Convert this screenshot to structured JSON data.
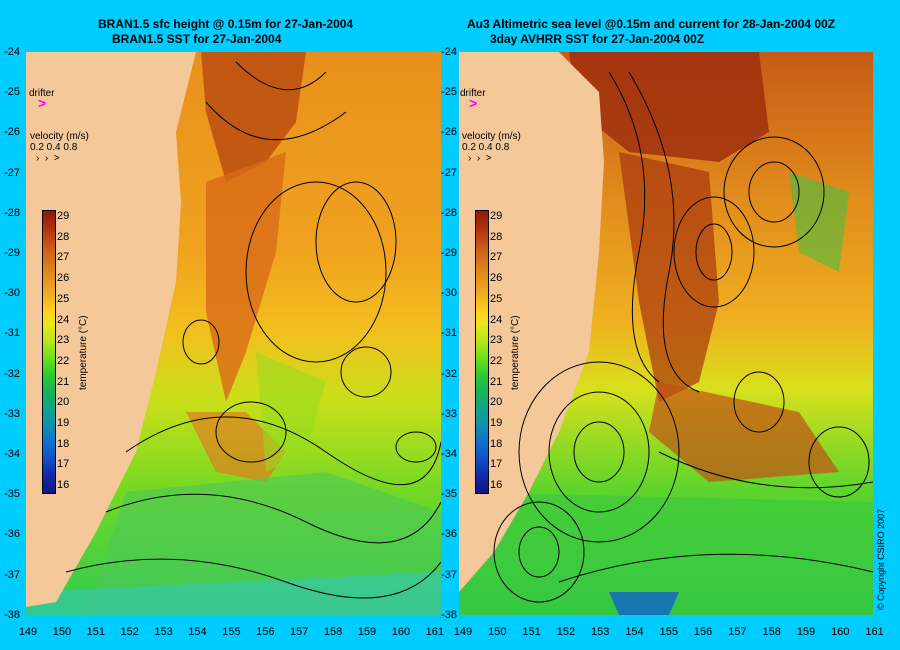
{
  "left_panel": {
    "title_line1": "BRAN1.5 sfc height @ 0.15m for 27-Jan-2004",
    "title_line2": "BRAN1.5 SST for 27-Jan-2004"
  },
  "right_panel": {
    "title_line1": "Au3 Altimetric sea level  @0.15m and current for 28-Jan-2004 00Z",
    "title_line2": "3day AVHRR SST for 27-Jan-2004 00Z"
  },
  "drifter_label": "drifter",
  "velocity_label": "velocity (m/s)",
  "velocity_values": "0.2 0.4 0.8",
  "temperature_label": "temperature (°C)",
  "colorbar_ticks": [
    "29",
    "28",
    "27",
    "26",
    "25",
    "24",
    "23",
    "22",
    "21",
    "20",
    "19",
    "18",
    "17",
    "16"
  ],
  "y_ticks": [
    "-24",
    "-25",
    "-26",
    "-27",
    "-28",
    "-29",
    "-30",
    "-31",
    "-32",
    "-33",
    "-34",
    "-35",
    "-36",
    "-37",
    "-38"
  ],
  "x_ticks": [
    "149",
    "150",
    "151",
    "152",
    "153",
    "154",
    "155",
    "156",
    "157",
    "158",
    "159",
    "160",
    "161"
  ],
  "x_ticks_right": [
    "149",
    "150",
    "151",
    "152",
    "153",
    "154",
    "155",
    "156",
    "157",
    "158",
    "159",
    "160",
    "161"
  ],
  "copyright": "© Copyright CSIRO 2007",
  "colors": {
    "background": "#00ccff",
    "land": "#f5c89a",
    "drifter": "#ff00ff"
  }
}
